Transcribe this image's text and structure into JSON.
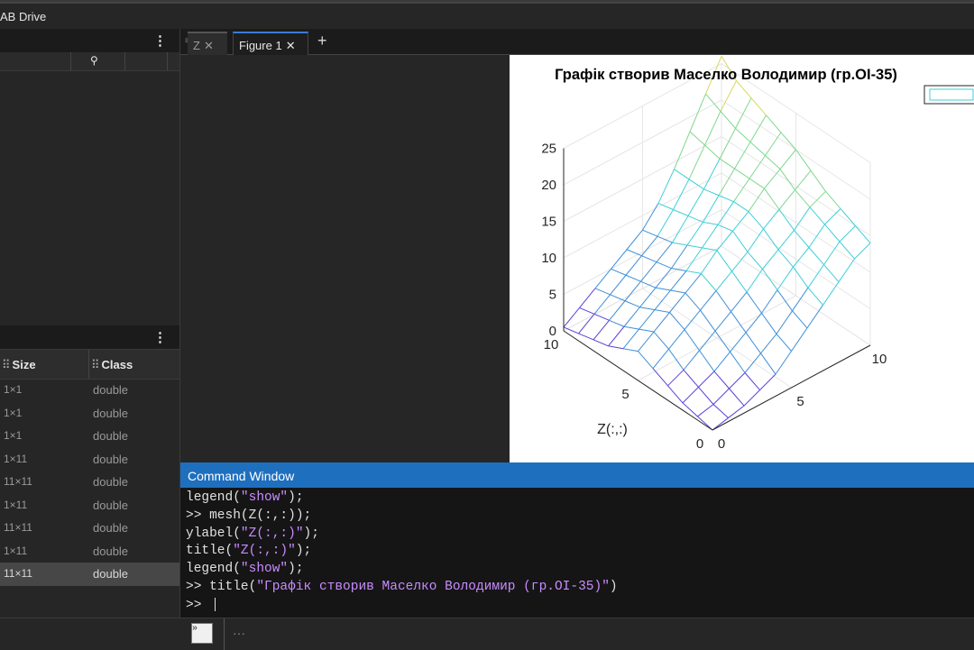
{
  "app": {
    "title": "AB Drive"
  },
  "left_panel": {
    "files": {
      "menu_icon": "⋮",
      "git_icon": "⚲"
    },
    "workspace": {
      "menu_icon": "⋮",
      "columns": [
        "Size",
        "Class"
      ],
      "rows": [
        {
          "size": "1×1",
          "class": "double",
          "selected": false
        },
        {
          "size": "1×1",
          "class": "double",
          "selected": false
        },
        {
          "size": "1×1",
          "class": "double",
          "selected": false
        },
        {
          "size": "1×11",
          "class": "double",
          "selected": false
        },
        {
          "size": "11×11",
          "class": "double",
          "selected": false
        },
        {
          "size": "1×11",
          "class": "double",
          "selected": false
        },
        {
          "size": "11×11",
          "class": "double",
          "selected": false
        },
        {
          "size": "1×11",
          "class": "double",
          "selected": false
        },
        {
          "size": "11×11",
          "class": "double",
          "selected": true
        }
      ]
    }
  },
  "tabs": [
    {
      "label": "Z",
      "active": false
    },
    {
      "label": "Figure 1",
      "active": true
    }
  ],
  "figure": {
    "chart_data": {
      "type": "surface",
      "title": "Графік створив Маселко Володимир (гр.ОІ-35)",
      "ylabel": "Z(:,:)",
      "x_ticks": [
        "0",
        "5",
        "10"
      ],
      "y_ticks": [
        "0",
        "5",
        "10"
      ],
      "z_ticks": [
        "0",
        "5",
        "10",
        "15",
        "20",
        "25"
      ],
      "zlim": [
        0,
        25
      ],
      "grid": true,
      "legend": "top-right",
      "colormap": [
        "#5b3fd8",
        "#3f8fd8",
        "#3fcfd8",
        "#7fd88f",
        "#d8d85b"
      ],
      "Z": [
        [
          0,
          0.5,
          1,
          2,
          3,
          5,
          7,
          9,
          11,
          13,
          14
        ],
        [
          0.5,
          1,
          2,
          3,
          4.5,
          6,
          8,
          10,
          12,
          14,
          15
        ],
        [
          1,
          2,
          3,
          4.5,
          6,
          7.5,
          9.5,
          11.5,
          13,
          15,
          16
        ],
        [
          2,
          3,
          4.5,
          6,
          7.5,
          9,
          11,
          12.5,
          14,
          16,
          17
        ],
        [
          3,
          4.5,
          6,
          7.5,
          9,
          10.5,
          12,
          14,
          15.5,
          17,
          18.5
        ],
        [
          4,
          5.5,
          7,
          8.5,
          10,
          12,
          13.5,
          15,
          17,
          18.5,
          20
        ],
        [
          3,
          4.5,
          6,
          7.5,
          9,
          11,
          13,
          15,
          17,
          19,
          21
        ],
        [
          2,
          3.5,
          5,
          6.5,
          8,
          10,
          12,
          14.5,
          17,
          19.5,
          22
        ],
        [
          1.5,
          3,
          4.5,
          6,
          7.5,
          9,
          11.5,
          14,
          17,
          20,
          23
        ],
        [
          1,
          2.5,
          4,
          5.5,
          7,
          8.5,
          11,
          14,
          17.5,
          21,
          24
        ],
        [
          0.5,
          2,
          3.5,
          5,
          6.5,
          8,
          10.5,
          14,
          18,
          22,
          26
        ]
      ]
    }
  },
  "command_window": {
    "title": "Command Window",
    "lines": [
      {
        "prompt": "",
        "code": "legend(",
        "str": "\"show\"",
        "tail": ");"
      },
      {
        "prompt": ">> ",
        "code": "mesh(Z(:,:));",
        "str": "",
        "tail": ""
      },
      {
        "prompt": "",
        "code": "ylabel(",
        "str": "\"Z(:,:)\"",
        "tail": ");"
      },
      {
        "prompt": "",
        "code": "title(",
        "str": "\"Z(:,:)\"",
        "tail": ");"
      },
      {
        "prompt": "",
        "code": "legend(",
        "str": "\"show\"",
        "tail": ");"
      },
      {
        "prompt": ">> ",
        "code": "title(",
        "str": "\"Графік створив Маселко Володимир (гр.ОІ-35)\"",
        "tail": ")"
      },
      {
        "prompt": ">> ",
        "code": "",
        "str": "",
        "tail": ""
      }
    ]
  },
  "statusbar": {
    "more_label": "···"
  }
}
